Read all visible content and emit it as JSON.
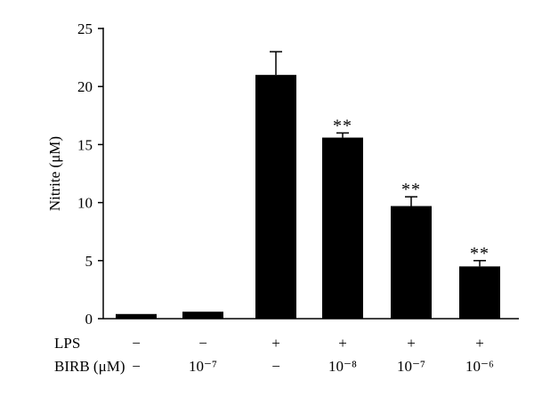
{
  "chart_data": {
    "type": "bar",
    "ylabel": "Nitrite (μM)",
    "ylim": [
      0,
      25
    ],
    "yticks": [
      0,
      5,
      10,
      15,
      20,
      25
    ],
    "grid": false,
    "values": [
      0.4,
      0.6,
      21.0,
      15.6,
      9.7,
      4.5
    ],
    "errors": [
      0,
      0,
      2.0,
      0.4,
      0.8,
      0.5
    ],
    "significance": [
      "",
      "",
      "",
      "**",
      "**",
      "**"
    ],
    "bar_color": "#000000",
    "conditions": [
      {
        "label": "LPS",
        "values": [
          "−",
          "−",
          "+",
          "+",
          "+",
          "+"
        ]
      },
      {
        "label": "BIRB (μM)",
        "values": [
          "−",
          "10⁻⁷",
          "−",
          "10⁻⁸",
          "10⁻⁷",
          "10⁻⁶"
        ]
      }
    ]
  }
}
